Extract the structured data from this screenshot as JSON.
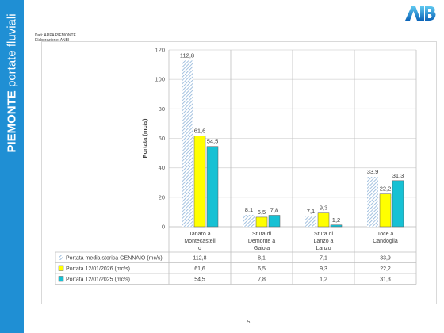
{
  "sidebar": {
    "title_bold": "PIEMONTE",
    "title_rest": " portate fluviali",
    "color": "#1f8fd4"
  },
  "source": {
    "line1": "Dati: ARPA PIEMONTE",
    "line2": "Elaborazione: ANBI"
  },
  "logo": {
    "name": "anbi-logo",
    "text": "ANBI"
  },
  "page_number": "5",
  "chart_data": {
    "type": "bar",
    "ylabel": "Portata (mc/s)",
    "ylim": [
      0,
      120
    ],
    "yticks": [
      0,
      20,
      40,
      60,
      80,
      100,
      120
    ],
    "grid": true,
    "categories": [
      "Tanaro a Montecastello",
      "Stura di Demonte a Gaiola",
      "Stura di Lanzo a Lanzo",
      "Toce a Candoglia"
    ],
    "category_lines": [
      [
        "Tanaro a",
        "Montecastell",
        "o"
      ],
      [
        "Stura di",
        "Demonte a",
        "Gaiola"
      ],
      [
        "Stura di",
        "Lanzo a",
        "Lanzo"
      ],
      [
        "Toce a",
        "Candoglia"
      ]
    ],
    "series": [
      {
        "name": "Portata media storica GENNAIO (mc/s)",
        "values": [
          112.8,
          8.1,
          7.1,
          33.9
        ],
        "labels": [
          "112,8",
          "8,1",
          "7,1",
          "33,9"
        ],
        "color": "#9dc3e6",
        "pattern": "hatch"
      },
      {
        "name": "Portata 12/01/2026 (mc/s)",
        "values": [
          61.6,
          6.5,
          9.3,
          22.2
        ],
        "labels": [
          "61,6",
          "6,5",
          "9,3",
          "22,2"
        ],
        "color": "#ffff00",
        "pattern": "solid"
      },
      {
        "name": "Portata 12/01/2025 (mc/s)",
        "values": [
          54.5,
          7.8,
          1.2,
          31.3
        ],
        "labels": [
          "54,5",
          "7,8",
          "1,2",
          "31,3"
        ],
        "color": "#17c1d4",
        "pattern": "solid"
      }
    ]
  }
}
